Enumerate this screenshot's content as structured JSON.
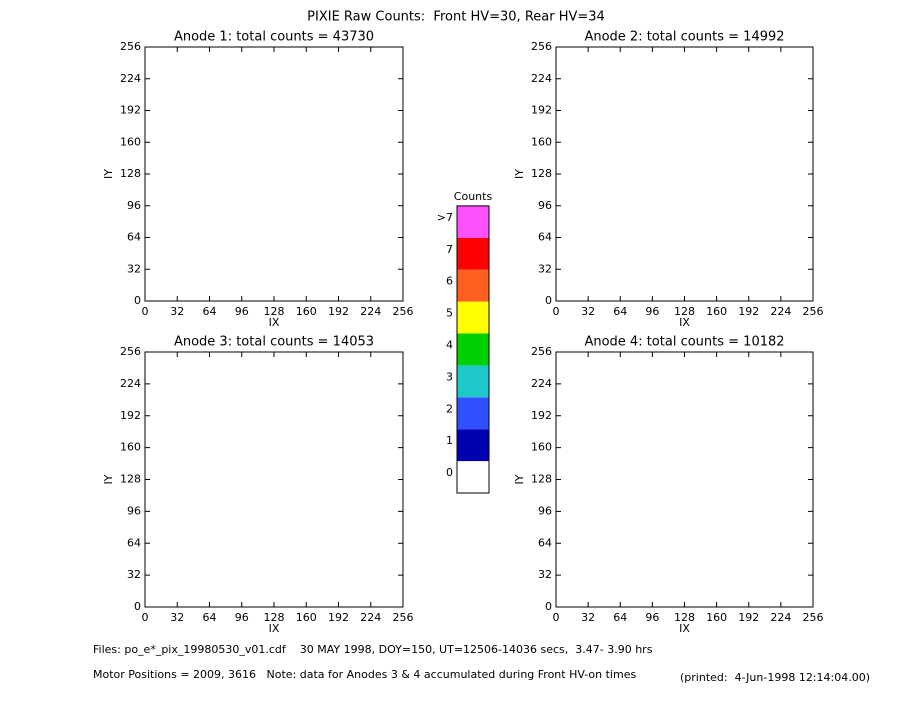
{
  "title": "PIXIE Raw Counts:  Front HV=30, Rear HV=34",
  "chart_data": [
    {
      "type": "heatmap",
      "title": "Anode 1: total counts = 43730",
      "xlabel": "IX",
      "ylabel": "IY",
      "xlim": [
        0,
        256
      ],
      "ylim": [
        0,
        256
      ],
      "xticks": [
        0,
        32,
        64,
        96,
        128,
        160,
        192,
        224,
        256
      ],
      "yticks": [
        0,
        32,
        64,
        96,
        128,
        160,
        192,
        224,
        256
      ]
    },
    {
      "type": "heatmap",
      "title": "Anode 2: total counts = 14992",
      "xlabel": "IX",
      "ylabel": "IY",
      "xlim": [
        0,
        256
      ],
      "ylim": [
        0,
        256
      ],
      "xticks": [
        0,
        32,
        64,
        96,
        128,
        160,
        192,
        224,
        256
      ],
      "yticks": [
        0,
        32,
        64,
        96,
        128,
        160,
        192,
        224,
        256
      ]
    },
    {
      "type": "heatmap",
      "title": "Anode 3: total counts = 14053",
      "xlabel": "IX",
      "ylabel": "IY",
      "xlim": [
        0,
        256
      ],
      "ylim": [
        0,
        256
      ],
      "xticks": [
        0,
        32,
        64,
        96,
        128,
        160,
        192,
        224,
        256
      ],
      "yticks": [
        0,
        32,
        64,
        96,
        128,
        160,
        192,
        224,
        256
      ]
    },
    {
      "type": "heatmap",
      "title": "Anode 4: total counts = 10182",
      "xlabel": "IX",
      "ylabel": "IY",
      "xlim": [
        0,
        256
      ],
      "ylim": [
        0,
        256
      ],
      "xticks": [
        0,
        32,
        64,
        96,
        128,
        160,
        192,
        224,
        256
      ],
      "yticks": [
        0,
        32,
        64,
        96,
        128,
        160,
        192,
        224,
        256
      ]
    }
  ],
  "colorbar": {
    "title": "Counts",
    "labels": [
      "0",
      "1",
      "2",
      "3",
      "4",
      "5",
      "6",
      "7",
      ">7"
    ],
    "colors": [
      "#ffffff",
      "#0000b0",
      "#3050ff",
      "#1ec8c8",
      "#00d000",
      "#ffff00",
      "#ff6020",
      "#ff0000",
      "#ff50ff"
    ]
  },
  "footer": {
    "files": "Files: po_e*_pix_19980530_v01.cdf    30 MAY 1998, DOY=150, UT=12506-14036 secs,  3.47- 3.90 hrs",
    "motor": "Motor Positions = 2009, 3616   Note: data for Anodes 3 & 4 accumulated during Front HV-on times",
    "printed": "(printed:  4-Jun-1998 12:14:04.00)"
  }
}
